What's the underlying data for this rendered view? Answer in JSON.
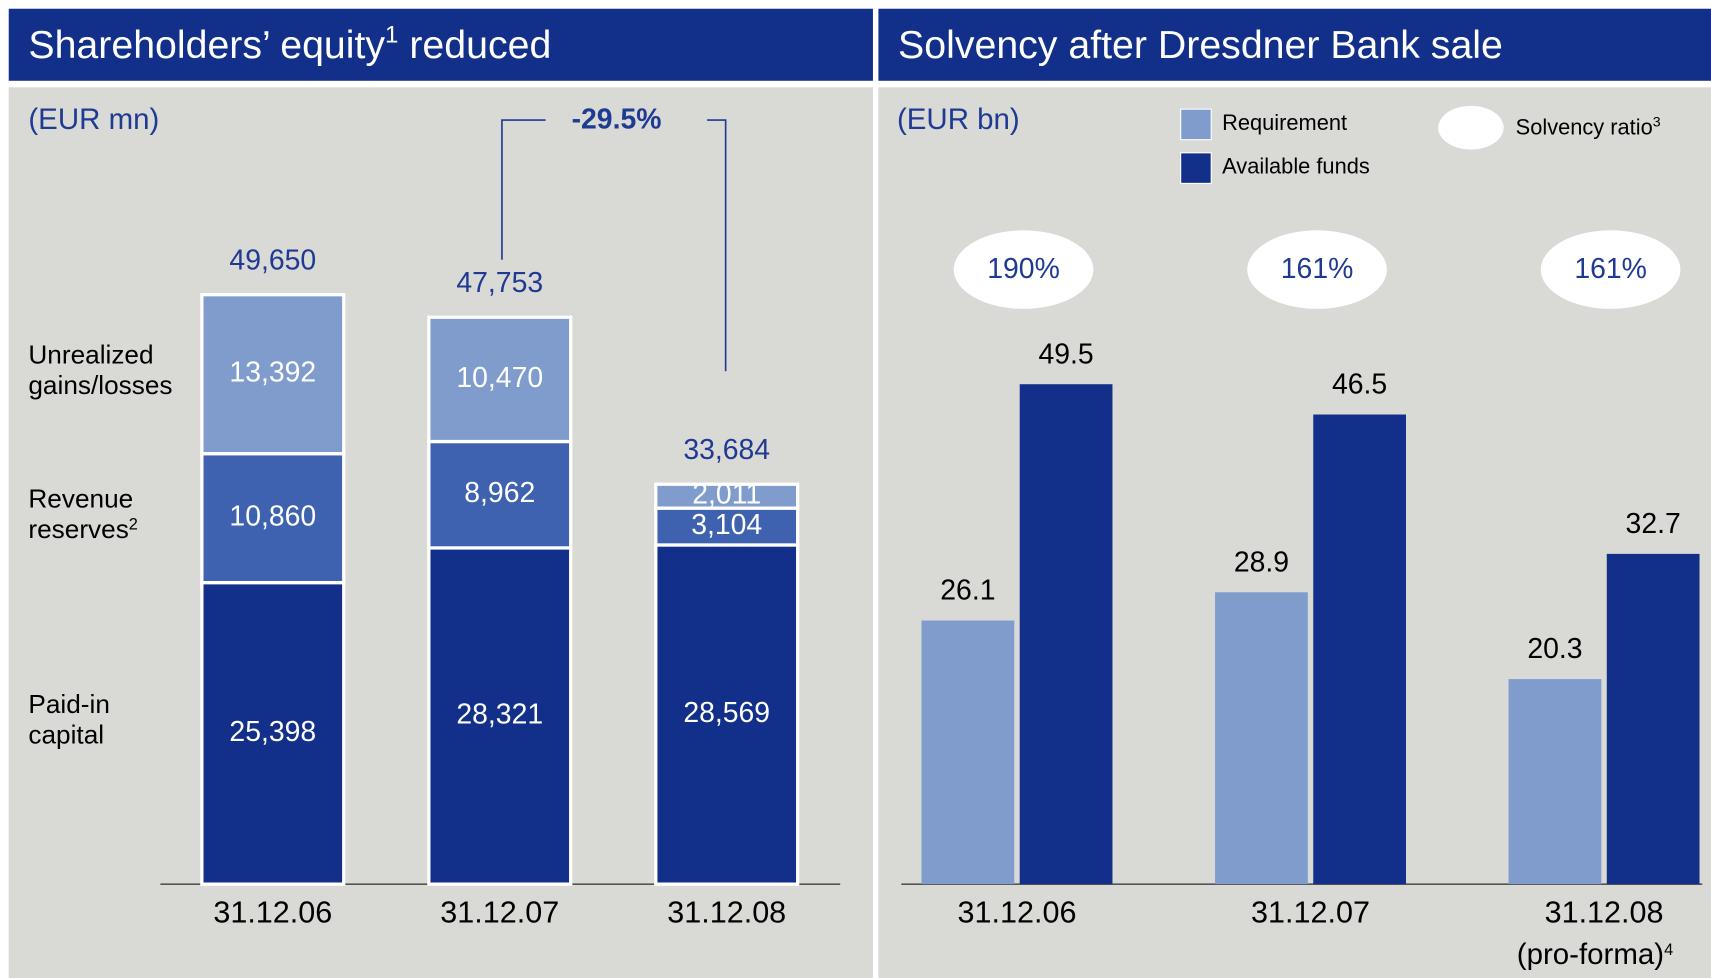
{
  "chart_data": [
    {
      "type": "stacked_bar",
      "title": "Shareholders’ equity",
      "title_note": "1",
      "title_end": " reduced",
      "unit": "(EUR mn)",
      "categories": [
        "31.12.06",
        "31.12.07",
        "31.12.08"
      ],
      "series": [
        {
          "name": "Paid-in capital",
          "color": "#12308a",
          "values": [
            25398,
            28321,
            28569
          ],
          "value_labels": [
            "25,398",
            "28,321",
            "28,569"
          ]
        },
        {
          "name": "Revenue reserves",
          "note": "2",
          "color": "#3f62b0",
          "values": [
            10860,
            8962,
            3104
          ],
          "value_labels": [
            "10,860",
            "8,962",
            "3,104"
          ]
        },
        {
          "name": "Unrealized gains/losses",
          "color": "#7f9ccd",
          "values": [
            13392,
            10470,
            2011
          ],
          "value_labels": [
            "13,392",
            "10,470",
            "2,011"
          ]
        }
      ],
      "totals": [
        49650,
        47753,
        33684
      ],
      "total_labels": [
        "49,650",
        "47,753",
        "33,684"
      ],
      "change_label": "-29.5%"
    },
    {
      "type": "bar",
      "title": "Solvency after Dresdner Bank sale",
      "unit": "(EUR bn)",
      "categories": [
        "31.12.06",
        "31.12.07",
        "31.12.08"
      ],
      "pro_forma_label": "(pro-forma)",
      "pro_forma_note": "4",
      "series": [
        {
          "name": "Requirement",
          "color": "#7f9ccd",
          "values": [
            26.1,
            28.9,
            20.3
          ]
        },
        {
          "name": "Available funds",
          "color": "#12308a",
          "values": [
            49.5,
            46.5,
            32.7
          ]
        }
      ],
      "ratio_name": "Solvency ratio",
      "ratio_note": "3",
      "ratios": [
        190,
        161,
        161
      ],
      "ratio_labels": [
        "190%",
        "161%",
        "161%"
      ]
    }
  ]
}
